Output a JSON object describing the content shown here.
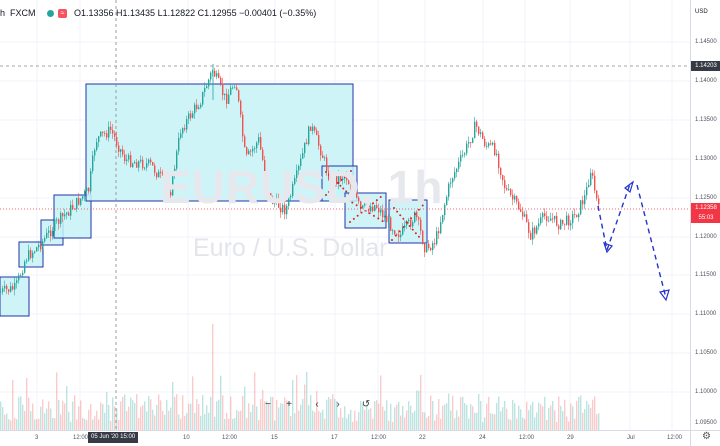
{
  "header": {
    "symbol_fragment": "h",
    "exchange": "FXCM",
    "ohlc_text": "O1.13356 H1.13435 L1.12822 C1.12955 −0.00401 (−0.35%)"
  },
  "watermark": {
    "symbol": "EURUSD, 1h",
    "description": "Euro / U.S. Dollar"
  },
  "price_axis": {
    "currency": "USD",
    "ticks": [
      "1.14500",
      "1.14000",
      "1.13500",
      "1.13000",
      "1.12500",
      "1.12000",
      "1.11500",
      "1.11000",
      "1.10500",
      "1.10000",
      "1.09500"
    ],
    "crosshair_price": "1.14203",
    "last_price": "1.12358",
    "countdown": "55:03"
  },
  "time_axis": {
    "ticks": [
      "3",
      "12:00",
      "10",
      "12:00",
      "15",
      "17",
      "12:00",
      "22",
      "24",
      "12:00",
      "29",
      "Jul",
      "12:00"
    ],
    "crosshair_label": "05 Jun '20  15:00"
  },
  "toolbar": {
    "zoom_out": "−",
    "zoom_in": "+",
    "scroll_left": "‹",
    "scroll_right": "›",
    "reset": "↺"
  },
  "colors": {
    "up": "#26a69a",
    "down": "#ef5350",
    "box_fill": "#c7f2f7",
    "box_border": "#2233aa",
    "arrow": "#2233cc",
    "last_price": "#f23645",
    "crosshair_label": "#363a45"
  }
}
